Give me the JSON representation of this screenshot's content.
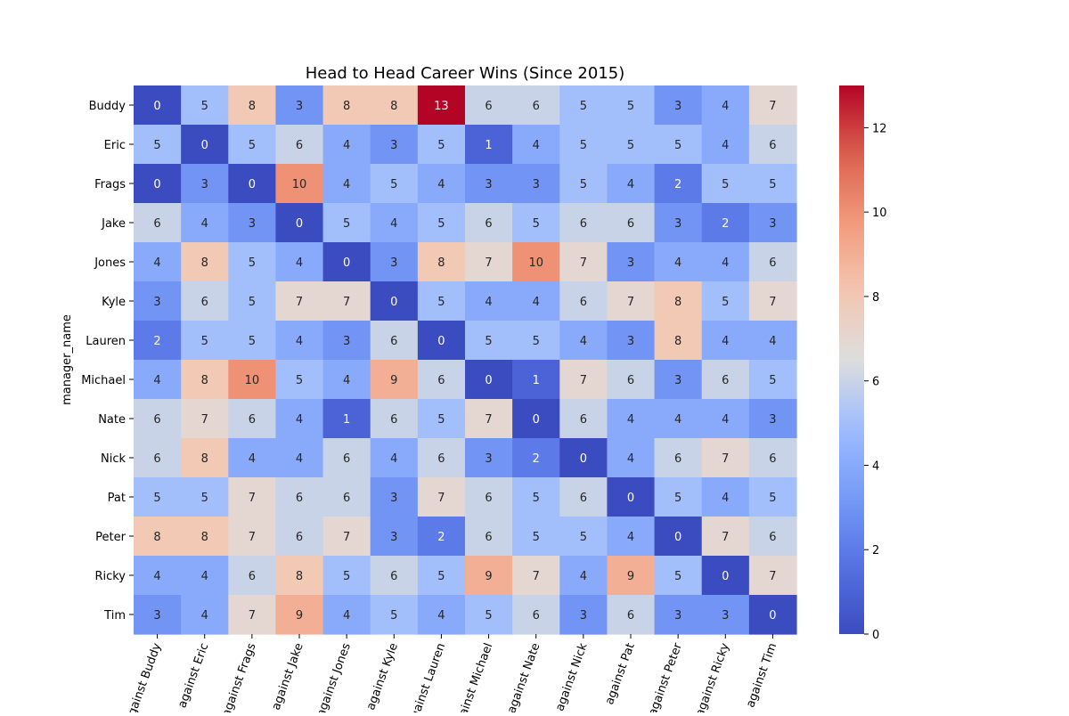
{
  "chart_data": {
    "type": "heatmap",
    "title": "Head to Head Career Wins (Since 2015)",
    "ylabel": "manager_name",
    "xlabel": "",
    "rows": [
      "Buddy",
      "Eric",
      "Frags",
      "Jake",
      "Jones",
      "Kyle",
      "Lauren",
      "Michael",
      "Nate",
      "Nick",
      "Pat",
      "Peter",
      "Ricky",
      "Tim"
    ],
    "columns": [
      "against Buddy",
      "against Eric",
      "against Frags",
      "against Jake",
      "against Jones",
      "against Kyle",
      "against Lauren",
      "against Michael",
      "against Nate",
      "against Nick",
      "against Pat",
      "against Peter",
      "against Ricky",
      "against Tim"
    ],
    "values": [
      [
        0,
        5,
        8,
        3,
        8,
        8,
        13,
        6,
        6,
        5,
        5,
        3,
        4,
        7
      ],
      [
        5,
        0,
        5,
        6,
        4,
        3,
        5,
        1,
        4,
        5,
        5,
        5,
        4,
        6
      ],
      [
        0,
        3,
        0,
        10,
        4,
        5,
        4,
        3,
        3,
        5,
        4,
        2,
        5,
        5
      ],
      [
        6,
        4,
        3,
        0,
        5,
        4,
        5,
        6,
        5,
        6,
        6,
        3,
        2,
        3
      ],
      [
        4,
        8,
        5,
        4,
        0,
        3,
        8,
        7,
        10,
        7,
        3,
        4,
        4,
        6
      ],
      [
        3,
        6,
        5,
        7,
        7,
        0,
        5,
        4,
        4,
        6,
        7,
        8,
        5,
        7
      ],
      [
        2,
        5,
        5,
        4,
        3,
        6,
        0,
        5,
        5,
        4,
        3,
        8,
        4,
        4
      ],
      [
        4,
        8,
        10,
        5,
        4,
        9,
        6,
        0,
        1,
        7,
        6,
        3,
        6,
        5
      ],
      [
        6,
        7,
        6,
        4,
        1,
        6,
        5,
        7,
        0,
        6,
        4,
        4,
        4,
        3
      ],
      [
        6,
        8,
        4,
        4,
        6,
        4,
        6,
        3,
        2,
        0,
        4,
        6,
        7,
        6
      ],
      [
        5,
        5,
        7,
        6,
        6,
        3,
        7,
        6,
        5,
        6,
        0,
        5,
        4,
        5
      ],
      [
        8,
        8,
        7,
        6,
        7,
        3,
        2,
        6,
        5,
        5,
        4,
        0,
        7,
        6
      ],
      [
        4,
        4,
        6,
        8,
        5,
        6,
        5,
        9,
        7,
        4,
        9,
        5,
        0,
        7
      ],
      [
        3,
        4,
        7,
        9,
        4,
        5,
        4,
        5,
        6,
        3,
        6,
        3,
        3,
        0
      ]
    ],
    "colormap": "coolwarm",
    "vmin": 0,
    "vmax": 13,
    "colorbar_ticks": [
      0,
      2,
      4,
      6,
      8,
      10,
      12
    ],
    "annotations": true,
    "legend": "colorbar right"
  }
}
